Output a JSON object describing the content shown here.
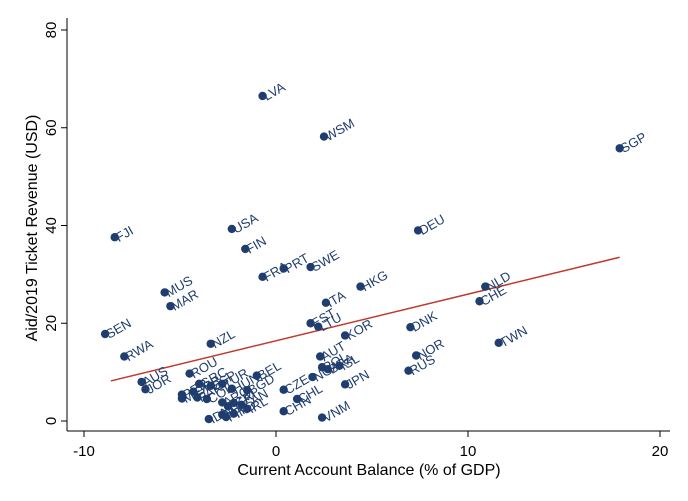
{
  "chart_data": {
    "type": "scatter",
    "title": "",
    "xlabel": "Current Account Balance (% of GDP)",
    "ylabel": "Aid/2019 Ticket Revenue (USD)",
    "xlim": [
      -10,
      20
    ],
    "ylim": [
      0,
      80
    ],
    "xticks": [
      -10,
      0,
      10,
      20
    ],
    "yticks": [
      0,
      20,
      40,
      60,
      80
    ],
    "grid": false,
    "legend": "none",
    "colors": {
      "points": "#1f3d6e",
      "fit_line": "#c0392b",
      "background": "#ffffff",
      "axis": "#000000"
    },
    "points": [
      {
        "label": "LVA",
        "x": -0.7,
        "y": 66.5
      },
      {
        "label": "WSM",
        "x": 2.5,
        "y": 58.2
      },
      {
        "label": "SGP",
        "x": 17.9,
        "y": 55.8
      },
      {
        "label": "USA",
        "x": -2.3,
        "y": 39.3
      },
      {
        "label": "FJI",
        "x": -8.4,
        "y": 37.6
      },
      {
        "label": "DEU",
        "x": 7.4,
        "y": 39.0
      },
      {
        "label": "FIN",
        "x": -1.6,
        "y": 35.2
      },
      {
        "label": "FRA",
        "x": -0.7,
        "y": 29.5
      },
      {
        "label": "PRT",
        "x": 0.4,
        "y": 31.2
      },
      {
        "label": "SWE",
        "x": 1.8,
        "y": 31.5
      },
      {
        "label": "MUS",
        "x": -5.8,
        "y": 26.3
      },
      {
        "label": "MAR",
        "x": -5.5,
        "y": 23.5
      },
      {
        "label": "HKG",
        "x": 4.4,
        "y": 27.5
      },
      {
        "label": "ITA",
        "x": 2.6,
        "y": 24.2
      },
      {
        "label": "NLD",
        "x": 10.9,
        "y": 27.5
      },
      {
        "label": "CHE",
        "x": 10.6,
        "y": 24.5
      },
      {
        "label": "EST",
        "x": 1.8,
        "y": 20.0
      },
      {
        "label": "LTU",
        "x": 2.2,
        "y": 19.3
      },
      {
        "label": "SEN",
        "x": -8.9,
        "y": 17.8
      },
      {
        "label": "DNK",
        "x": 7.0,
        "y": 19.2
      },
      {
        "label": "KOR",
        "x": 3.6,
        "y": 17.5
      },
      {
        "label": "NZL",
        "x": -3.4,
        "y": 15.8
      },
      {
        "label": "TWN",
        "x": 11.6,
        "y": 16.0
      },
      {
        "label": "RWA",
        "x": -7.9,
        "y": 13.2
      },
      {
        "label": "NOR",
        "x": 7.3,
        "y": 13.4
      },
      {
        "label": "RUS",
        "x": 6.9,
        "y": 10.3
      },
      {
        "label": "AUT",
        "x": 2.3,
        "y": 13.2
      },
      {
        "label": "POL",
        "x": 2.4,
        "y": 11.0
      },
      {
        "label": "BRA",
        "x": 2.7,
        "y": 10.6
      },
      {
        "label": "ISL",
        "x": 3.3,
        "y": 11.3
      },
      {
        "label": "ROU",
        "x": -4.5,
        "y": 9.7
      },
      {
        "label": "AUS",
        "x": -7.0,
        "y": 8.0
      },
      {
        "label": "JOR",
        "x": -6.8,
        "y": 6.5
      },
      {
        "label": "BEL",
        "x": -1.0,
        "y": 9.3
      },
      {
        "label": "GRC",
        "x": -4.0,
        "y": 7.6
      },
      {
        "label": "ESP",
        "x": -3.4,
        "y": 7.2
      },
      {
        "label": "TUR",
        "x": -2.8,
        "y": 7.6
      },
      {
        "label": "HUN",
        "x": -2.3,
        "y": 6.6
      },
      {
        "label": "BGD",
        "x": -1.5,
        "y": 6.3
      },
      {
        "label": "CZE",
        "x": 0.4,
        "y": 6.4
      },
      {
        "label": "GBR",
        "x": -4.3,
        "y": 6.0
      },
      {
        "label": "PER",
        "x": -4.9,
        "y": 5.4
      },
      {
        "label": "MEX",
        "x": -4.9,
        "y": 4.6
      },
      {
        "label": "PAK",
        "x": -4.1,
        "y": 4.8
      },
      {
        "label": "COL",
        "x": -3.6,
        "y": 4.5
      },
      {
        "label": "ARG",
        "x": -2.8,
        "y": 3.8
      },
      {
        "label": "CRI",
        "x": -2.2,
        "y": 3.7
      },
      {
        "label": "CAN",
        "x": -1.8,
        "y": 3.3
      },
      {
        "label": "LKA",
        "x": -2.5,
        "y": 3.0
      },
      {
        "label": "IRL",
        "x": -1.5,
        "y": 2.5
      },
      {
        "label": "NGA",
        "x": 1.9,
        "y": 9.0
      },
      {
        "label": "CHL",
        "x": 1.1,
        "y": 4.5
      },
      {
        "label": "JPN",
        "x": 3.6,
        "y": 7.5
      },
      {
        "label": "CHN",
        "x": 0.4,
        "y": 2.0
      },
      {
        "label": "THA",
        "x": -2.8,
        "y": 1.3
      },
      {
        "label": "IND",
        "x": -2.2,
        "y": 1.5
      },
      {
        "label": "PHL",
        "x": -2.6,
        "y": 0.8
      },
      {
        "label": "IDN",
        "x": -3.5,
        "y": 0.4
      },
      {
        "label": "VNM",
        "x": 2.4,
        "y": 0.7
      }
    ],
    "fit_line": {
      "x": [
        -8.6,
        17.9
      ],
      "y": [
        8.2,
        33.5
      ]
    }
  }
}
